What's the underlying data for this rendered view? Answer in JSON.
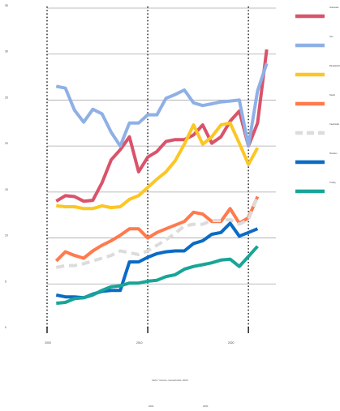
{
  "chart_data": {
    "type": "line",
    "title": "",
    "xlabel": "",
    "ylabel": "",
    "x": [
      2001,
      2002,
      2003,
      2004,
      2005,
      2006,
      2007,
      2008,
      2009,
      2010,
      2011,
      2012,
      2013,
      2014,
      2015,
      2016,
      2017,
      2018,
      2019,
      2020,
      2021,
      2022,
      2023,
      2024
    ],
    "xlim": [
      2000,
      2025
    ],
    "ylim": [
      0,
      35
    ],
    "xticks": [
      "2000",
      "2010",
      "2020"
    ],
    "yticks": [
      "0",
      "5",
      "10",
      "15",
      "20",
      "25",
      "30",
      "35"
    ],
    "gridlines": [
      5,
      10,
      15,
      20,
      25,
      30,
      35
    ],
    "vlines": [
      2011,
      2022
    ],
    "grid": true,
    "legend_position": "right",
    "series": [
      {
        "name": "Indonesia",
        "color": "#d9536a",
        "dashed": false,
        "values": [
          14.0,
          14.6,
          14.5,
          14.0,
          14.1,
          16.0,
          18.5,
          19.6,
          21.0,
          17.2,
          18.8,
          19.4,
          20.5,
          20.7,
          20.7,
          21.2,
          22.3,
          20.3,
          21.0,
          22.7,
          23.8,
          20.0,
          22.5,
          30.5
        ]
      },
      {
        "name": "Iran",
        "color": "#8fb0e5",
        "dashed": false,
        "values": [
          26.5,
          26.3,
          23.9,
          22.6,
          24.0,
          23.5,
          21.5,
          20.0,
          22.5,
          22.5,
          23.4,
          23.4,
          25.2,
          25.6,
          26.1,
          24.7,
          24.4,
          24.6,
          24.8,
          24.9,
          25.0,
          20.0,
          26.0,
          29.0
        ]
      },
      {
        "name": "Bangladesh",
        "color": "#fcc624",
        "dashed": false,
        "values": [
          13.5,
          13.4,
          13.4,
          13.2,
          13.2,
          13.5,
          13.3,
          13.4,
          14.2,
          14.6,
          15.5,
          16.4,
          17.2,
          18.4,
          20.2,
          22.3,
          20.2,
          21.0,
          22.3,
          22.5,
          20.3,
          18.0,
          19.8,
          null
        ]
      },
      {
        "name": "Nepal",
        "color": "#ff7a4d",
        "dashed": false,
        "values": [
          7.5,
          8.5,
          8.1,
          7.8,
          8.6,
          9.2,
          9.7,
          10.3,
          11.0,
          11.0,
          10.0,
          10.6,
          11.0,
          11.4,
          11.8,
          12.8,
          12.6,
          11.8,
          11.8,
          13.2,
          11.6,
          12.2,
          14.5,
          null
        ]
      },
      {
        "name": "Cambodia",
        "color": "#dcdcdc",
        "dashed": true,
        "values": [
          6.8,
          7.0,
          7.0,
          7.2,
          7.5,
          7.8,
          8.1,
          8.6,
          8.4,
          8.2,
          8.6,
          9.2,
          9.8,
          10.5,
          11.3,
          11.5,
          11.5,
          11.9,
          11.9,
          12.0,
          11.5,
          12.0,
          14.5,
          null
        ]
      },
      {
        "name": "Vietnam",
        "color": "#0a6bc5",
        "dashed": false,
        "values": [
          3.8,
          3.6,
          3.6,
          3.5,
          3.9,
          4.2,
          4.3,
          4.3,
          7.4,
          7.4,
          7.9,
          8.3,
          8.5,
          8.6,
          8.6,
          9.4,
          9.7,
          10.4,
          10.6,
          11.6,
          10.2,
          10.6,
          11.0,
          null
        ]
      },
      {
        "name": "Turkey",
        "color": "#17a597",
        "dashed": false,
        "values": [
          2.9,
          3.0,
          3.4,
          3.5,
          3.8,
          4.3,
          4.7,
          4.8,
          5.1,
          5.1,
          5.3,
          5.4,
          5.8,
          6.0,
          6.6,
          6.9,
          7.1,
          7.3,
          7.6,
          7.7,
          6.9,
          8.0,
          9.1,
          null
        ]
      }
    ]
  },
  "footer": {
    "caption": "Debt / income, Households, 2024",
    "years": [
      "2001",
      "2001"
    ]
  }
}
